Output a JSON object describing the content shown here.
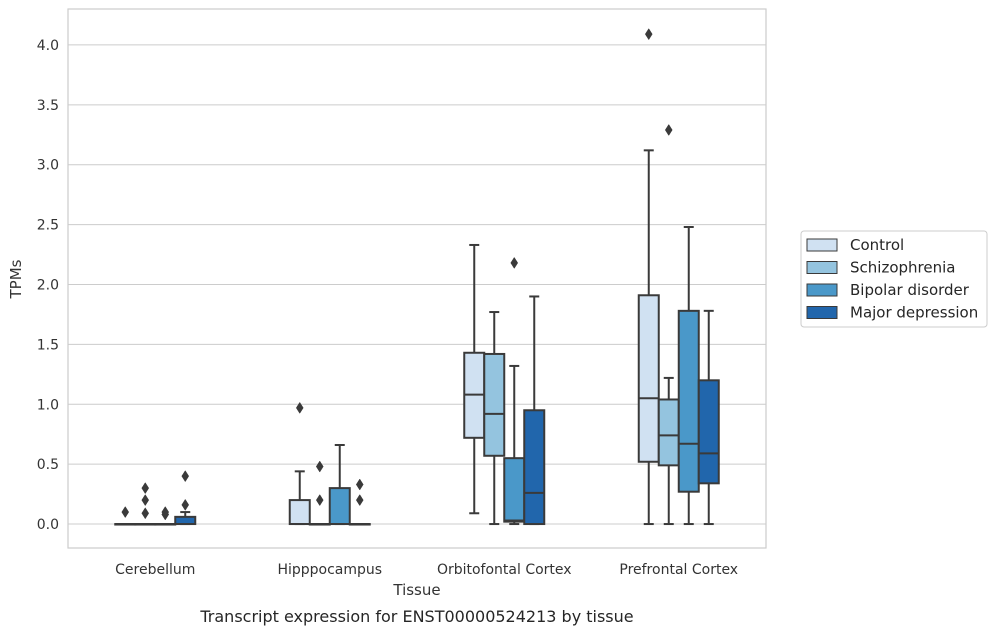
{
  "chart_data": {
    "type": "box",
    "xlabel": "Tissue",
    "ylabel": "TPMs",
    "caption": "Transcript expression for ENST00000524213 by tissue",
    "ylim": [
      -0.2,
      4.3
    ],
    "yticks": [
      "0.0",
      "0.5",
      "1.0",
      "1.5",
      "2.0",
      "2.5",
      "3.0",
      "3.5",
      "4.0"
    ],
    "grid": true,
    "legend_position": "right",
    "categories": [
      "Cerebellum",
      "Hipppocampus",
      "Orbitofontal Cortex",
      "Prefrontal Cortex"
    ],
    "series": [
      {
        "name": "Control",
        "color": "#d0e1f2",
        "boxes": [
          {
            "q1": 0,
            "median": 0,
            "q3": 0,
            "whisker_low": 0,
            "whisker_high": 0,
            "outliers": [
              0.1
            ]
          },
          {
            "q1": 0,
            "median": 0,
            "q3": 0.2,
            "whisker_low": 0,
            "whisker_high": 0.44,
            "outliers": [
              0.97
            ]
          },
          {
            "q1": 0.72,
            "median": 1.08,
            "q3": 1.43,
            "whisker_low": 0.09,
            "whisker_high": 2.33,
            "outliers": []
          },
          {
            "q1": 0.52,
            "median": 1.05,
            "q3": 1.91,
            "whisker_low": 0,
            "whisker_high": 3.12,
            "outliers": [
              4.09
            ]
          }
        ]
      },
      {
        "name": "Schizophrenia",
        "color": "#94c4df",
        "boxes": [
          {
            "q1": 0,
            "median": 0,
            "q3": 0,
            "whisker_low": 0,
            "whisker_high": 0,
            "outliers": [
              0.09,
              0.2,
              0.3
            ]
          },
          {
            "q1": 0,
            "median": 0,
            "q3": 0,
            "whisker_low": 0,
            "whisker_high": 0,
            "outliers": [
              0.2,
              0.48
            ]
          },
          {
            "q1": 0.57,
            "median": 0.92,
            "q3": 1.42,
            "whisker_low": 0,
            "whisker_high": 1.77,
            "outliers": []
          },
          {
            "q1": 0.49,
            "median": 0.74,
            "q3": 1.04,
            "whisker_low": 0,
            "whisker_high": 1.22,
            "outliers": [
              3.29
            ]
          }
        ]
      },
      {
        "name": "Bipolar disorder",
        "color": "#4a98c9",
        "boxes": [
          {
            "q1": 0,
            "median": 0,
            "q3": 0,
            "whisker_low": 0,
            "whisker_high": 0,
            "outliers": [
              0.08,
              0.1
            ]
          },
          {
            "q1": 0,
            "median": 0,
            "q3": 0.3,
            "whisker_low": 0,
            "whisker_high": 0.66,
            "outliers": []
          },
          {
            "q1": 0.02,
            "median": 0.03,
            "q3": 0.55,
            "whisker_low": 0,
            "whisker_high": 1.32,
            "outliers": [
              2.18
            ]
          },
          {
            "q1": 0.27,
            "median": 0.67,
            "q3": 1.78,
            "whisker_low": 0,
            "whisker_high": 2.48,
            "outliers": []
          }
        ]
      },
      {
        "name": "Major depression",
        "color": "#2166ac",
        "boxes": [
          {
            "q1": 0,
            "median": 0,
            "q3": 0.06,
            "whisker_low": 0,
            "whisker_high": 0.1,
            "outliers": [
              0.16,
              0.4
            ]
          },
          {
            "q1": 0,
            "median": 0,
            "q3": 0,
            "whisker_low": 0,
            "whisker_high": 0,
            "outliers": [
              0.2,
              0.33
            ]
          },
          {
            "q1": 0,
            "median": 0.26,
            "q3": 0.95,
            "whisker_low": 0,
            "whisker_high": 1.9,
            "outliers": []
          },
          {
            "q1": 0.34,
            "median": 0.59,
            "q3": 1.2,
            "whisker_low": 0,
            "whisker_high": 1.78,
            "outliers": []
          }
        ]
      }
    ]
  }
}
